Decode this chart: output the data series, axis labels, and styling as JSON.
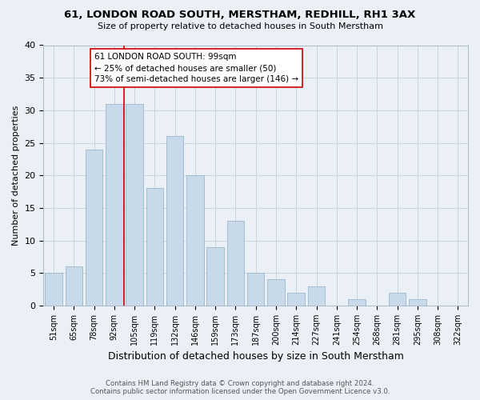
{
  "title": "61, LONDON ROAD SOUTH, MERSTHAM, REDHILL, RH1 3AX",
  "subtitle": "Size of property relative to detached houses in South Merstham",
  "xlabel": "Distribution of detached houses by size in South Merstham",
  "ylabel": "Number of detached properties",
  "bar_labels": [
    "51sqm",
    "65sqm",
    "78sqm",
    "92sqm",
    "105sqm",
    "119sqm",
    "132sqm",
    "146sqm",
    "159sqm",
    "173sqm",
    "187sqm",
    "200sqm",
    "214sqm",
    "227sqm",
    "241sqm",
    "254sqm",
    "268sqm",
    "281sqm",
    "295sqm",
    "308sqm",
    "322sqm"
  ],
  "bar_values": [
    5,
    6,
    24,
    31,
    31,
    18,
    26,
    20,
    9,
    13,
    5,
    4,
    2,
    3,
    0,
    1,
    0,
    2,
    1,
    0,
    0
  ],
  "bar_color": "#c8daea",
  "bar_edge_color": "#9ab8cc",
  "grid_color": "#c8d4de",
  "background_color": "#eaf0f6",
  "property_label": "61 LONDON ROAD SOUTH: 99sqm",
  "ann_line1": "← 25% of detached houses are smaller (50)",
  "ann_line2": "73% of semi-detached houses are larger (146) →",
  "red_line_color": "#cc0000",
  "footer_line1": "Contains HM Land Registry data © Crown copyright and database right 2024.",
  "footer_line2": "Contains public sector information licensed under the Open Government Licence v3.0.",
  "ylim": [
    0,
    40
  ],
  "yticks": [
    0,
    5,
    10,
    15,
    20,
    25,
    30,
    35,
    40
  ],
  "red_line_x": 3.5
}
